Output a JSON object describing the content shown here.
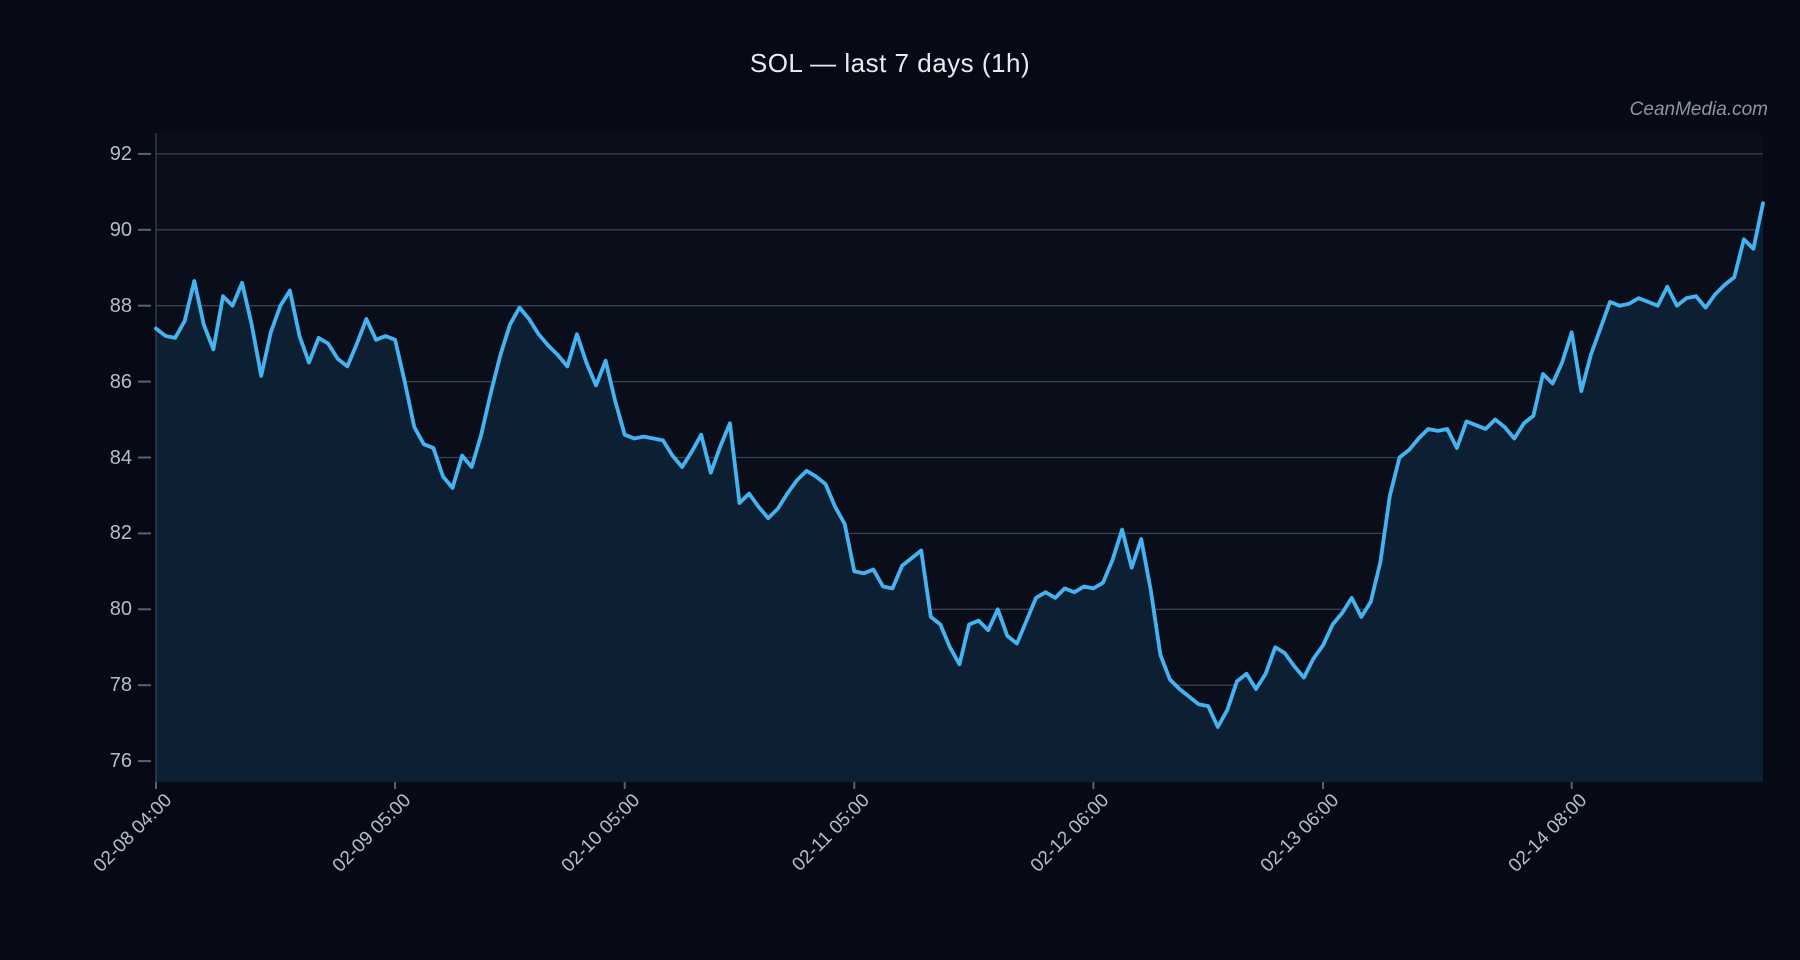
{
  "title": "SOL — last 7 days (1h)",
  "watermark": "CeanMedia.com",
  "colors": {
    "background": "#060a15",
    "plot_background": "#090e1a",
    "area_fill": "#0c1f33",
    "line": "#45b3f0",
    "grid": "#3a4150",
    "axis_spine": "#3a4150",
    "tick_mark": "#5a6170",
    "tick_text": "#b7bdc8",
    "title_text": "#e9ebf0",
    "watermark_text": "#8f95a0"
  },
  "chart_data": {
    "type": "line",
    "title": "SOL — last 7 days (1h)",
    "symbol": "SOL",
    "interval": "1h",
    "xlabel": "",
    "ylabel": "",
    "legend": "none",
    "grid": "horizontal",
    "x_unit": "hours since 02-08 04:00",
    "x_range_hours": [
      0,
      168
    ],
    "x_tick_labels": [
      "02-08 04:00",
      "02-09 05:00",
      "02-10 05:00",
      "02-11 05:00",
      "02-12 06:00",
      "02-13 06:00",
      "02-14 08:00"
    ],
    "x_tick_hours": [
      0,
      25,
      49,
      73,
      98,
      122,
      148
    ],
    "y_ticks": [
      76,
      78,
      80,
      82,
      84,
      86,
      88,
      90,
      92
    ],
    "ylim": [
      75.45,
      92.55
    ],
    "values_hourly": [
      87.4,
      87.2,
      87.15,
      87.6,
      88.65,
      87.5,
      86.85,
      88.25,
      88.0,
      88.6,
      87.5,
      86.15,
      87.3,
      88.0,
      88.4,
      87.2,
      86.5,
      87.15,
      87.0,
      86.6,
      86.4,
      87.0,
      87.65,
      87.1,
      87.2,
      87.1,
      86.0,
      84.8,
      84.35,
      84.25,
      83.5,
      83.2,
      84.05,
      83.75,
      84.6,
      85.7,
      86.7,
      87.5,
      87.95,
      87.65,
      87.25,
      86.95,
      86.7,
      86.4,
      87.25,
      86.5,
      85.9,
      86.55,
      85.5,
      84.6,
      84.5,
      84.55,
      84.5,
      84.45,
      84.05,
      83.75,
      84.15,
      84.6,
      83.6,
      84.3,
      84.9,
      82.8,
      83.05,
      82.7,
      82.4,
      82.65,
      83.05,
      83.4,
      83.65,
      83.5,
      83.3,
      82.7,
      82.25,
      81.0,
      80.95,
      81.05,
      80.6,
      80.55,
      81.15,
      81.35,
      81.55,
      79.8,
      79.6,
      79.0,
      78.55,
      79.6,
      79.7,
      79.45,
      80.0,
      79.3,
      79.1,
      79.7,
      80.3,
      80.45,
      80.3,
      80.55,
      80.45,
      80.6,
      80.55,
      80.7,
      81.3,
      82.1,
      81.1,
      81.85,
      80.5,
      78.8,
      78.15,
      77.9,
      77.7,
      77.5,
      77.45,
      76.9,
      77.35,
      78.1,
      78.3,
      77.9,
      78.3,
      79.0,
      78.85,
      78.5,
      78.2,
      78.7,
      79.05,
      79.6,
      79.9,
      80.3,
      79.8,
      80.2,
      81.25,
      83.0,
      84.0,
      84.2,
      84.5,
      84.75,
      84.7,
      84.75,
      84.25,
      84.95,
      84.85,
      84.75,
      85.0,
      84.8,
      84.5,
      84.9,
      85.1,
      86.2,
      85.95,
      86.5,
      87.3,
      85.75,
      86.7,
      87.4,
      88.1,
      88.0,
      88.05,
      88.2,
      88.1,
      88.0,
      88.5,
      88.0,
      88.2,
      88.25,
      87.95,
      88.3,
      88.55,
      88.75,
      89.75,
      89.5,
      90.7
    ]
  }
}
